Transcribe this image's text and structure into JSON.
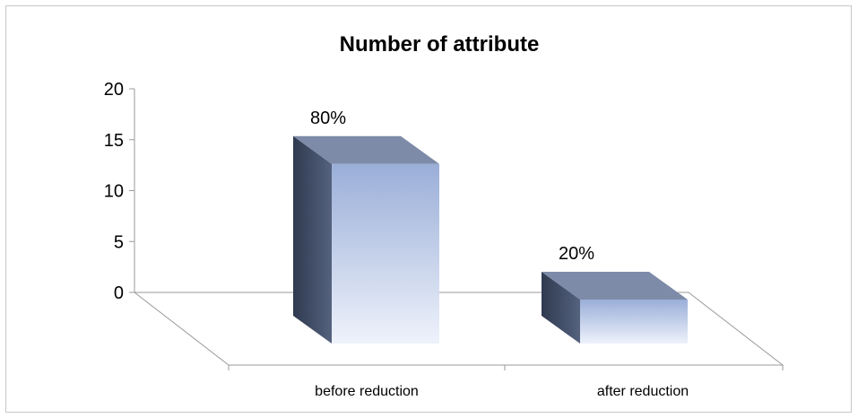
{
  "chart_data": {
    "type": "bar",
    "title": "Number of attribute",
    "categories": [
      "before reduction",
      "after reduction"
    ],
    "values": [
      15,
      3
    ],
    "data_labels": [
      "80%",
      "20%"
    ],
    "ylim": [
      0,
      20
    ],
    "yticks": [
      0,
      5,
      10,
      15,
      20
    ],
    "xlabel": "",
    "ylabel": "",
    "grid": false,
    "legend": "none",
    "style": "3d-column",
    "colors": {
      "front_top": "#9aaed8",
      "front_bottom": "#eef2fb",
      "side": "#3d4a63",
      "top": "#7d8ba8",
      "axis": "#9a9a9a"
    }
  }
}
